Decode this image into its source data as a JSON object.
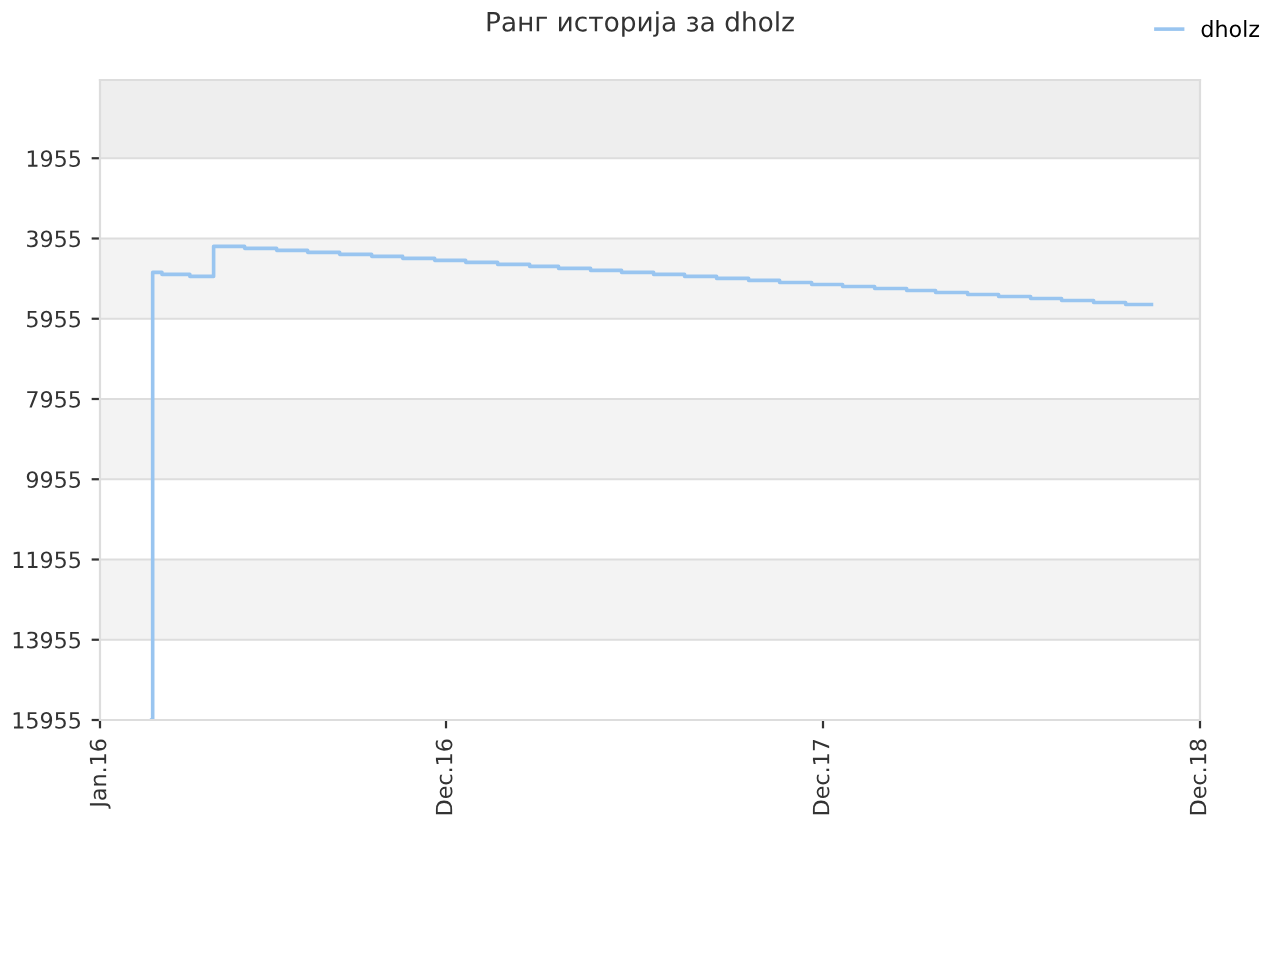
{
  "chart_data": {
    "type": "step",
    "title": "Ранг историја за dholz",
    "x": [
      "2016-02-20",
      "2016-02-21",
      "2016-03-01",
      "2016-03-28",
      "2016-04-20",
      "2016-05-20",
      "2016-06-20",
      "2016-07-20",
      "2016-08-20",
      "2016-09-20",
      "2016-10-20",
      "2016-11-20",
      "2016-12-20",
      "2017-01-20",
      "2017-02-20",
      "2017-03-20",
      "2017-04-20",
      "2017-05-20",
      "2017-06-20",
      "2017-07-20",
      "2017-08-20",
      "2017-09-20",
      "2017-10-20",
      "2017-11-20",
      "2017-12-20",
      "2018-01-20",
      "2018-02-20",
      "2018-03-20",
      "2018-04-20",
      "2018-05-20",
      "2018-06-20",
      "2018-07-20",
      "2018-08-20",
      "2018-09-20",
      "2018-10-15"
    ],
    "series": [
      {
        "name": "dholz",
        "color": "#99c5f0",
        "values": [
          15955,
          4800,
          4850,
          4900,
          4150,
          4200,
          4250,
          4300,
          4350,
          4400,
          4450,
          4500,
          4550,
          4600,
          4650,
          4700,
          4750,
          4800,
          4850,
          4900,
          4950,
          5000,
          5050,
          5100,
          5150,
          5200,
          5250,
          5300,
          5350,
          5400,
          5450,
          5500,
          5550,
          5600,
          5600
        ]
      }
    ],
    "xlim": [
      "2016-01-01",
      "2018-12-01"
    ],
    "xticks": [
      {
        "value": "2016-01-01",
        "label": "Jan.16"
      },
      {
        "value": "2016-12-01",
        "label": "Dec.16"
      },
      {
        "value": "2017-12-01",
        "label": "Dec.17"
      },
      {
        "value": "2018-12-01",
        "label": "Dec.18"
      }
    ],
    "ylim": [
      15955,
      5
    ],
    "yticks": [
      1955,
      3955,
      5955,
      7955,
      9955,
      11955,
      13955,
      15955
    ],
    "bands": [
      {
        "axis": "y",
        "from": 5,
        "to": 1955,
        "color": "#eeeeee"
      },
      {
        "axis": "y",
        "from": 3955,
        "to": 5955,
        "color": "#f3f3f3"
      },
      {
        "axis": "y",
        "from": 7955,
        "to": 9955,
        "color": "#f3f3f3"
      },
      {
        "axis": "y",
        "from": 11955,
        "to": 13955,
        "color": "#f3f3f3"
      }
    ],
    "grid": "y",
    "legend": "top right",
    "line_style": "solid"
  }
}
